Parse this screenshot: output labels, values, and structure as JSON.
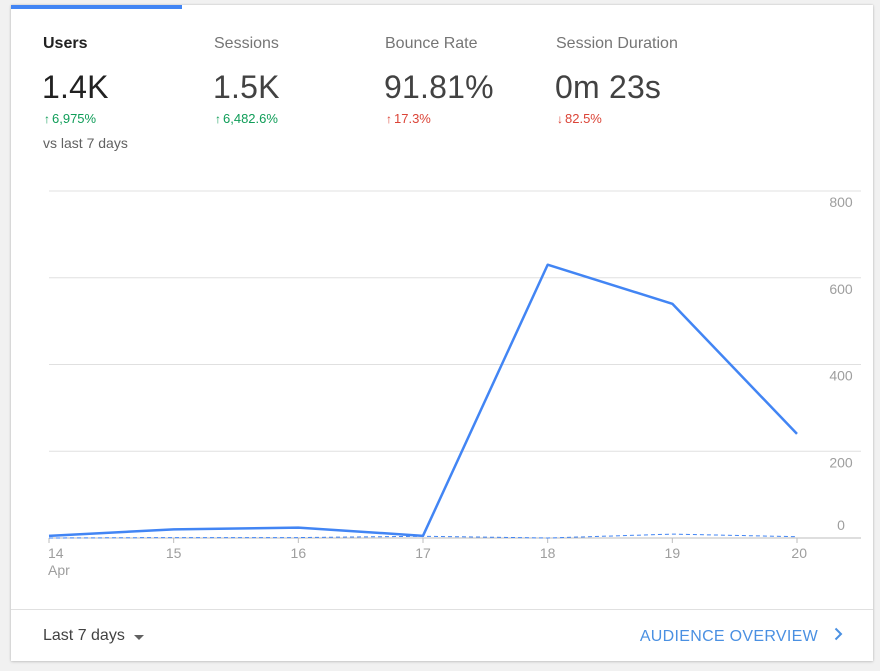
{
  "metrics": [
    {
      "label": "Users",
      "value": "1.4K",
      "change": "6,975%",
      "direction": "up",
      "active": true
    },
    {
      "label": "Sessions",
      "value": "1.5K",
      "change": "6,482.6%",
      "direction": "up",
      "active": false
    },
    {
      "label": "Bounce Rate",
      "value": "91.81%",
      "change": "17.3%",
      "direction": "up-bad",
      "active": false
    },
    {
      "label": "Session Duration",
      "value": "0m 23s",
      "change": "82.5%",
      "direction": "down-bad",
      "active": false
    }
  ],
  "comparison_text": "vs last 7 days",
  "colors": {
    "accent": "#4285f4",
    "positive": "#0f9d58",
    "negative": "#db4437",
    "link": "#4a90e2"
  },
  "footer": {
    "range_label": "Last 7 days",
    "link_label": "AUDIENCE OVERVIEW"
  },
  "chart_data": {
    "type": "line",
    "x": [
      "14",
      "15",
      "16",
      "17",
      "18",
      "19",
      "20"
    ],
    "x_sublabel": "Apr",
    "ylim": [
      0,
      800
    ],
    "y_ticks": [
      0,
      200,
      400,
      600,
      800
    ],
    "series": [
      {
        "style": "solid",
        "values": [
          5,
          20,
          24,
          5,
          630,
          540,
          240
        ]
      },
      {
        "style": "dashed",
        "values": [
          0,
          1,
          1,
          4,
          0,
          9,
          3
        ]
      }
    ]
  }
}
